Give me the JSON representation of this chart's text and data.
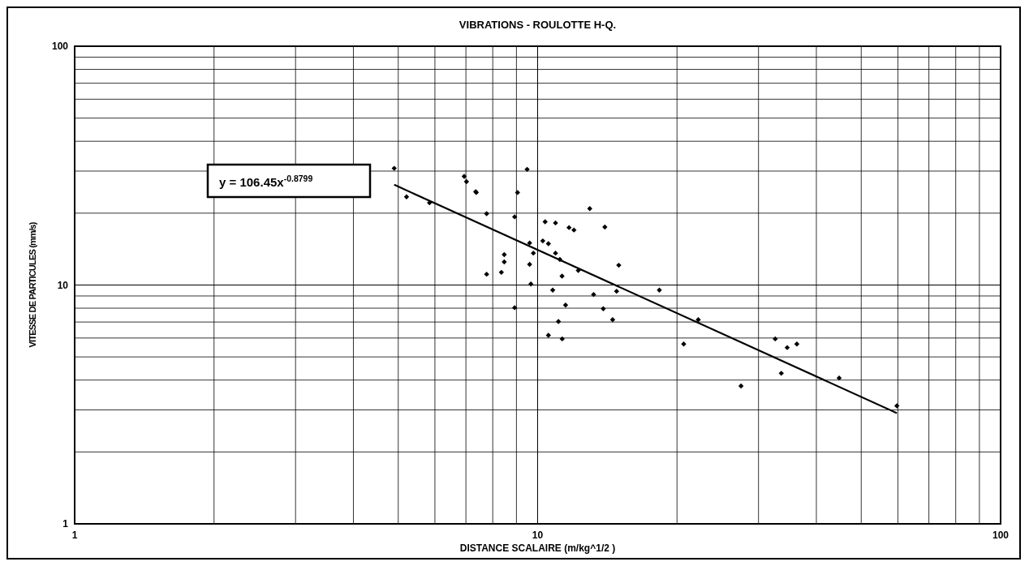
{
  "chart_data": {
    "type": "scatter",
    "title": "VIBRATIONS - ROULOTTE H-Q.",
    "xlabel": "DISTANCE SCALAIRE (m/kg^1/2 )",
    "ylabel": "VITESSE DE PARTICULES (mm/s)",
    "log": "xy",
    "grid": true,
    "marker": "diamond",
    "xlim": [
      1,
      100
    ],
    "ylim": [
      1,
      100
    ],
    "xticks": [
      1,
      {
        "value": 2,
        "label": null
      },
      {
        "value": 3,
        "label": null
      },
      {
        "value": 4,
        "label": null
      },
      {
        "value": 5,
        "label": null
      },
      {
        "value": 6,
        "label": null
      },
      {
        "value": 7,
        "label": null
      },
      {
        "value": 8,
        "label": null
      },
      {
        "value": 9,
        "label": null
      },
      10,
      {
        "value": 20,
        "label": null
      },
      {
        "value": 30,
        "label": null
      },
      {
        "value": 40,
        "label": null
      },
      {
        "value": 50,
        "label": null
      },
      {
        "value": 60,
        "label": null
      },
      {
        "value": 70,
        "label": null
      },
      {
        "value": 80,
        "label": null
      },
      {
        "value": 90,
        "label": null
      },
      100
    ],
    "yticks": [
      1,
      {
        "value": 2,
        "label": null
      },
      {
        "value": 3,
        "label": null
      },
      {
        "value": 4,
        "label": null
      },
      {
        "value": 5,
        "label": null
      },
      {
        "value": 6,
        "label": null
      },
      {
        "value": 7,
        "label": null
      },
      {
        "value": 8,
        "label": null
      },
      {
        "value": 9,
        "label": null
      },
      10,
      {
        "value": 20,
        "label": null
      },
      {
        "value": 30,
        "label": null
      },
      {
        "value": 40,
        "label": null
      },
      {
        "value": 50,
        "label": null
      },
      {
        "value": 60,
        "label": null
      },
      {
        "value": 70,
        "label": null
      },
      {
        "value": 80,
        "label": null
      },
      {
        "value": 90,
        "label": null
      },
      100
    ],
    "annotations": [
      "y = 106.45x$^{-0.8799}$"
    ],
    "series": [
      {
        "color": "#000000",
        "x": [
          4.9,
          5.21,
          5.84,
          6.94,
          7.02,
          7.35,
          7.37,
          7.76,
          7.76,
          8.35,
          8.47,
          8.47,
          8.92,
          9.05,
          9.49,
          9.61,
          9.61,
          9.79,
          9.67,
          8.92,
          10.38,
          10.93,
          10.26,
          10.55,
          10.93,
          11.17,
          11.29,
          10.78,
          11.49,
          11.09,
          10.55,
          11.3,
          11.69,
          11.98,
          12.96,
          13.97,
          12.24,
          13.21,
          13.86,
          14.52,
          14.97,
          14.81,
          18.32,
          20.68,
          22.23,
          27.5,
          32.6,
          34.6,
          36.3,
          33.6,
          44.8,
          59.7
        ],
        "values": [
          30.8,
          23.4,
          22.1,
          28.5,
          27.1,
          24.6,
          24.4,
          19.9,
          11.1,
          11.3,
          12.5,
          13.4,
          19.3,
          24.4,
          30.5,
          15.0,
          12.2,
          13.6,
          10.1,
          8.04,
          18.4,
          18.2,
          15.3,
          14.9,
          13.6,
          12.8,
          10.9,
          9.52,
          8.24,
          7.03,
          6.16,
          5.95,
          17.4,
          17.0,
          20.9,
          17.5,
          11.5,
          9.13,
          7.96,
          7.16,
          12.1,
          9.42,
          9.52,
          5.66,
          7.16,
          3.78,
          5.95,
          5.47,
          5.66,
          4.27,
          4.08,
          3.12
        ]
      },
      {
        "type": "line",
        "color": "#000000",
        "marker": "none",
        "x": [
          4.9,
          59.7
        ],
        "values": [
          26.3,
          2.91
        ]
      }
    ]
  }
}
